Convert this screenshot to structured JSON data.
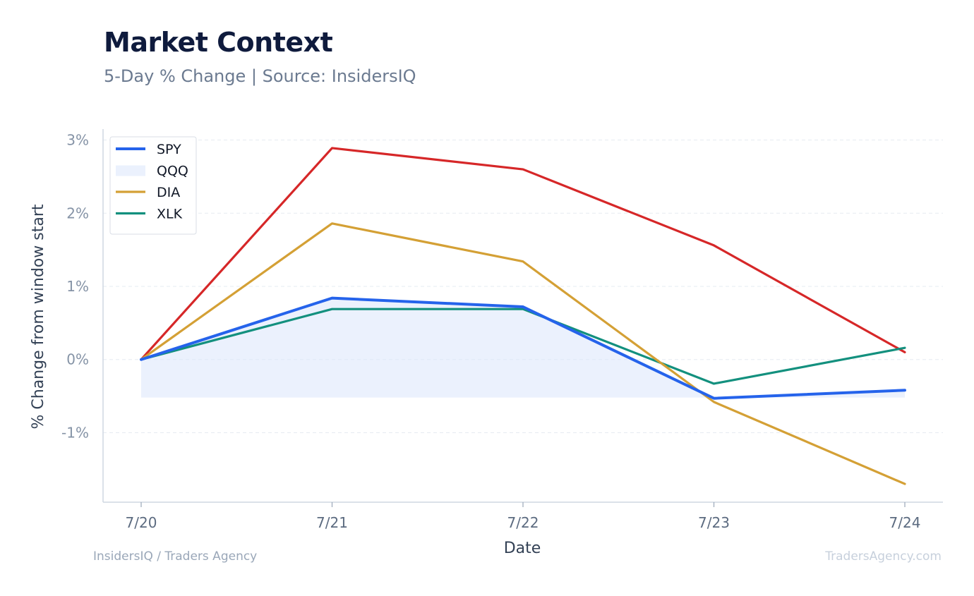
{
  "header": {
    "title": "Market Context",
    "subtitle": "5-Day % Change | Source: InsidersIQ"
  },
  "footer": {
    "left": "InsidersIQ / Traders Agency",
    "right": "TradersAgency.com"
  },
  "chart_data": {
    "type": "line",
    "x": [
      "7/20",
      "7/21",
      "7/22",
      "7/23",
      "7/24"
    ],
    "xlabel": "Date",
    "ylabel": "% Change from window start",
    "ylim": [
      -1.95,
      3.15
    ],
    "yticks": [
      -1,
      0,
      1,
      2,
      3
    ],
    "ytick_labels": [
      "-1%",
      "0%",
      "1%",
      "2%",
      "3%"
    ],
    "grid": true,
    "legend_position": "top-left",
    "series": [
      {
        "name": "SPY",
        "color": "#2563eb",
        "style": "line",
        "in_legend": true,
        "values": [
          0.0,
          0.84,
          0.72,
          -0.53,
          -0.42
        ]
      },
      {
        "name": "QQQ",
        "color": "#dbe6fb",
        "style": "area",
        "in_legend": true,
        "baseline": -0.52,
        "values": [
          0.0,
          0.84,
          0.72,
          -0.53,
          -0.42
        ]
      },
      {
        "name": "DIA",
        "color": "#d4a035",
        "style": "line",
        "in_legend": true,
        "values": [
          0.0,
          1.86,
          1.34,
          -0.58,
          -1.7
        ]
      },
      {
        "name": "XLK",
        "color": "#13907e",
        "style": "line",
        "in_legend": true,
        "values": [
          0.0,
          0.69,
          0.69,
          -0.33,
          0.16
        ]
      },
      {
        "name": "",
        "color": "#d62728",
        "style": "line",
        "in_legend": false,
        "values": [
          0.0,
          2.89,
          2.6,
          1.56,
          0.1
        ]
      }
    ]
  }
}
